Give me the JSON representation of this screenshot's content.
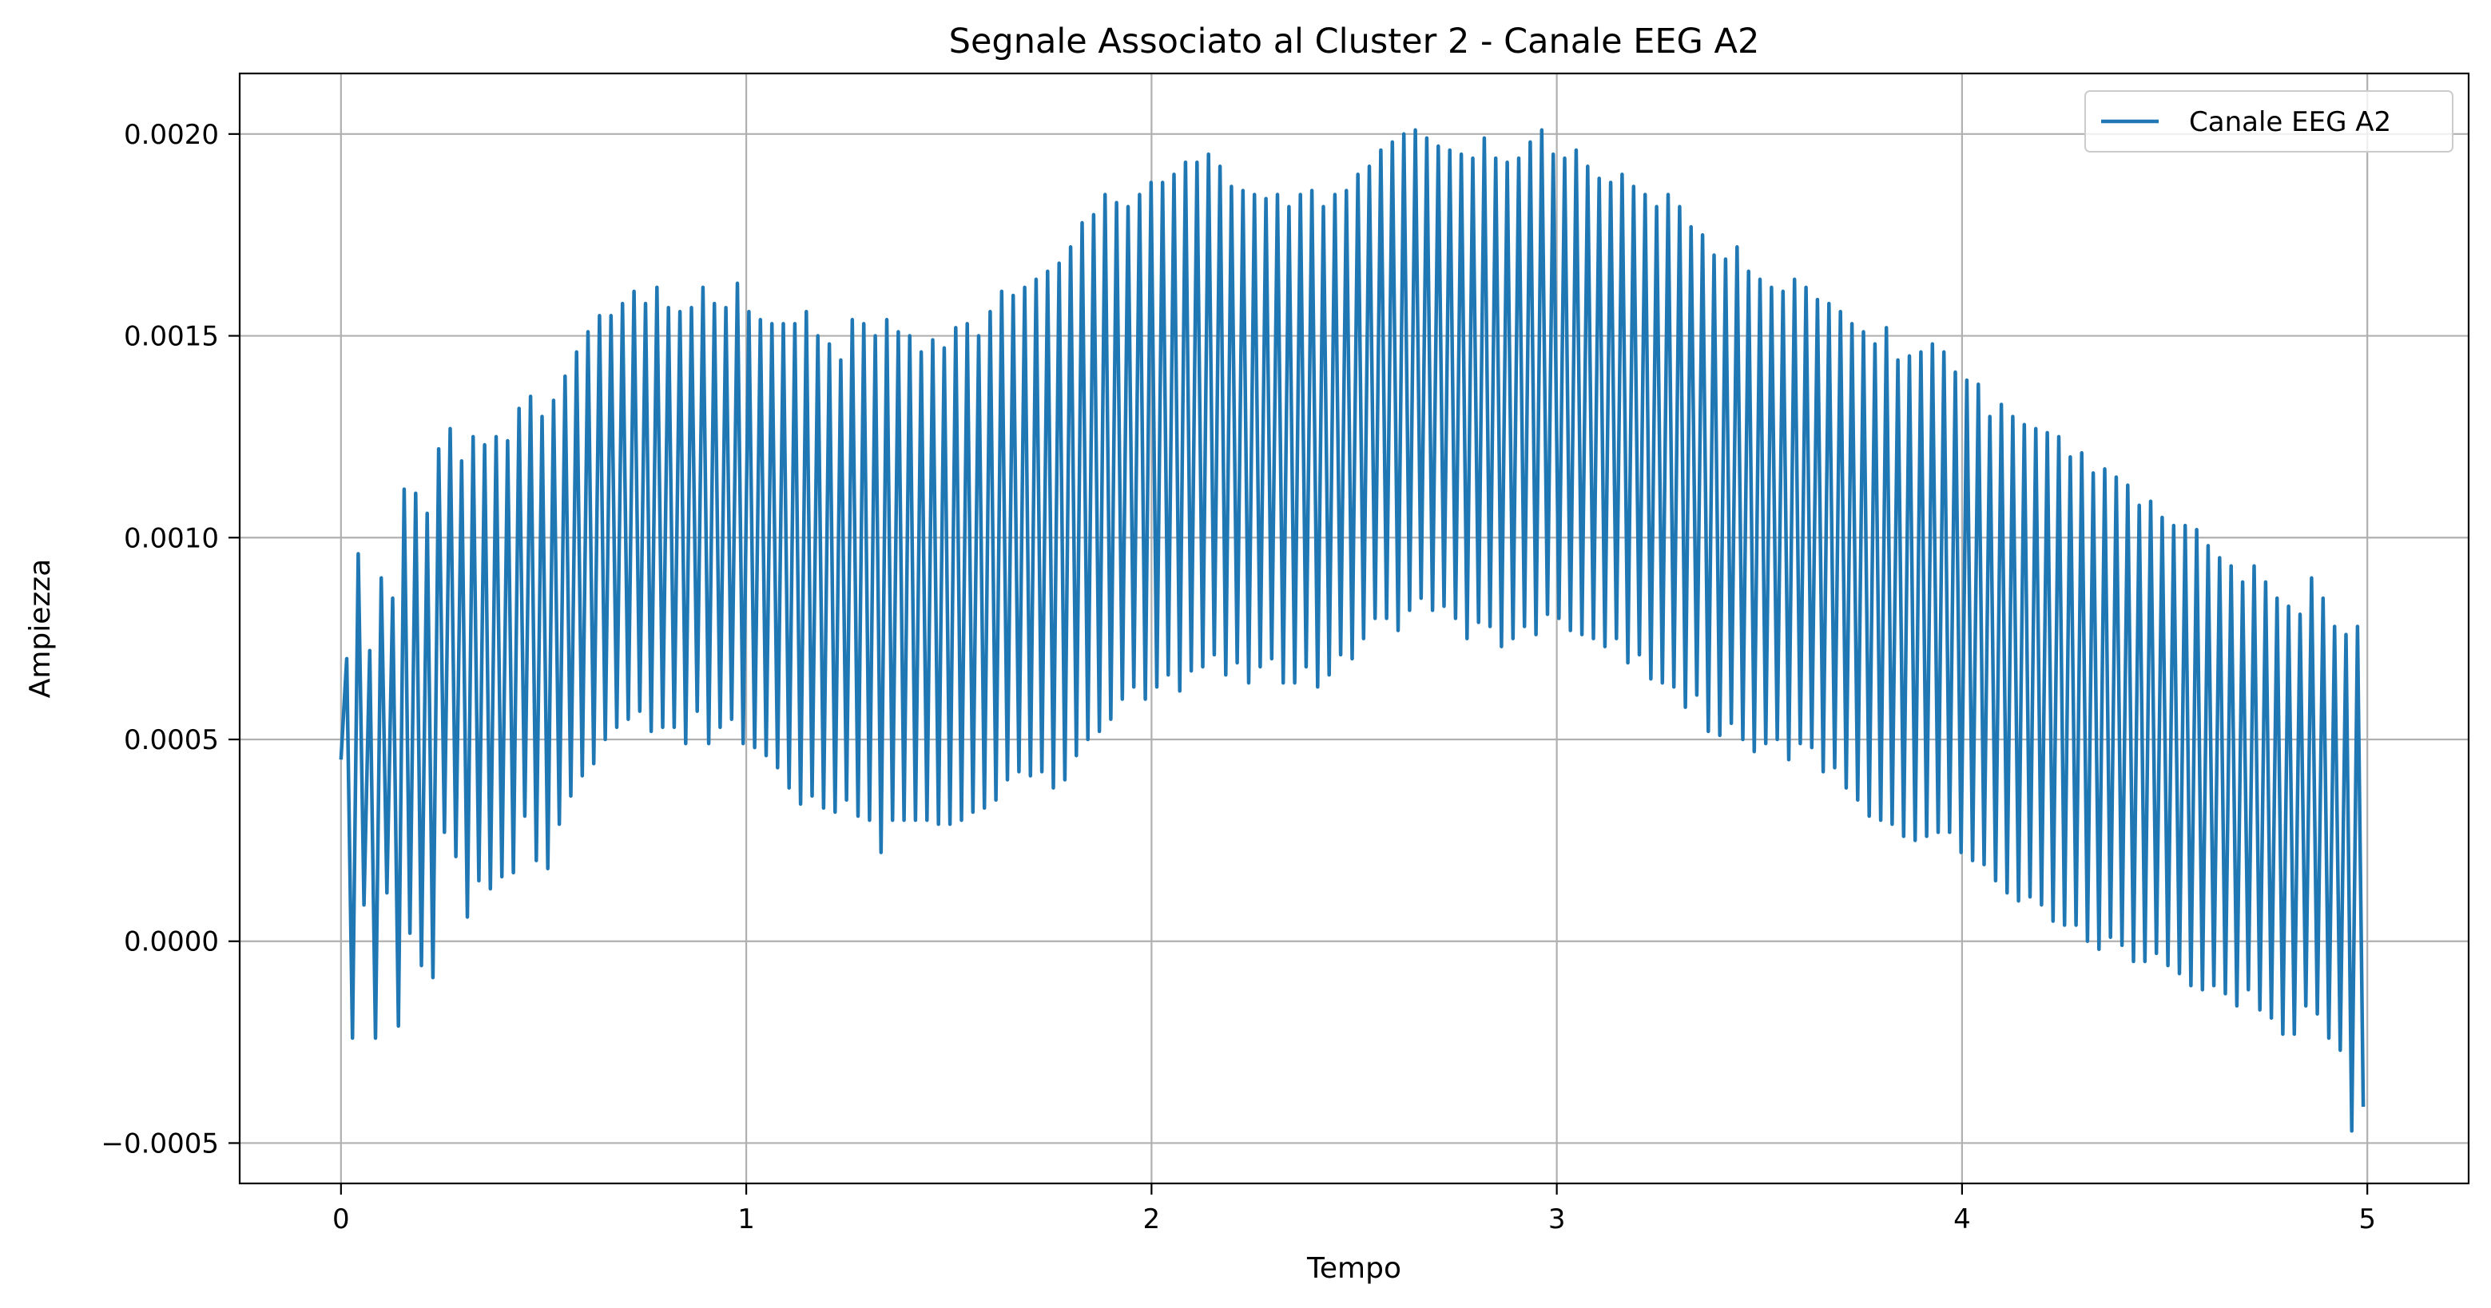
{
  "chart_data": {
    "type": "line",
    "title": "Segnale Associato al Cluster 2 - Canale EEG A2",
    "xlabel": "Tempo",
    "ylabel": "Ampiezza",
    "xlim": [
      -0.25,
      5.25
    ],
    "ylim": [
      -0.0006,
      0.00215
    ],
    "xticks": [
      0,
      1,
      2,
      3,
      4,
      5
    ],
    "xtick_labels": [
      "0",
      "1",
      "2",
      "3",
      "4",
      "5"
    ],
    "yticks": [
      -0.0005,
      0.0,
      0.0005,
      0.001,
      0.0015,
      0.002
    ],
    "ytick_labels": [
      "−0.0005",
      "0.0000",
      "0.0005",
      "0.0010",
      "0.0015",
      "0.0020"
    ],
    "grid": true,
    "legend_position": "top-right",
    "series": [
      {
        "name": "Canale EEG A2",
        "color": "#1f77b4",
        "x_range": [
          0,
          4.99
        ],
        "sample_rate": 100,
        "description_components": {
          "baseline_trend": "half-sine 0.00045 to 0.00125 to 0.00025",
          "oscillation_hz": 50,
          "oscillation_amplitude": 0.0007,
          "modulation_hz": 5,
          "modulation_amplitude": 0.00015
        },
        "values": [
          0.00045,
          0.0007,
          -0.00024,
          0.00096,
          9e-05,
          0.00072,
          -0.00024,
          0.0009,
          0.00012,
          0.00085,
          -0.00021,
          0.00112,
          2e-05,
          0.00111,
          -6e-05,
          0.00106,
          -9e-05,
          0.00122,
          0.00027,
          0.00127,
          0.00021,
          0.00119,
          6e-05,
          0.00125,
          0.00015,
          0.00123,
          0.00013,
          0.00125,
          0.00016,
          0.00124,
          0.00017,
          0.00132,
          0.00031,
          0.00135,
          0.0002,
          0.0013,
          0.00018,
          0.00134,
          0.00029,
          0.0014,
          0.00036,
          0.00146,
          0.00041,
          0.00151,
          0.00044,
          0.00155,
          0.0005,
          0.00155,
          0.00053,
          0.00158,
          0.00055,
          0.00161,
          0.00057,
          0.00158,
          0.00052,
          0.00162,
          0.00053,
          0.00157,
          0.00053,
          0.00156,
          0.00049,
          0.00157,
          0.00057,
          0.00162,
          0.00049,
          0.00158,
          0.00053,
          0.00157,
          0.00055,
          0.00163,
          0.00049,
          0.00156,
          0.00048,
          0.00154,
          0.00046,
          0.00153,
          0.00043,
          0.00153,
          0.00038,
          0.00153,
          0.00034,
          0.00156,
          0.00036,
          0.0015,
          0.00033,
          0.00148,
          0.00032,
          0.00144,
          0.00035,
          0.00154,
          0.00031,
          0.00153,
          0.0003,
          0.0015,
          0.00022,
          0.00154,
          0.0003,
          0.00151,
          0.0003,
          0.0015,
          0.0003,
          0.00146,
          0.0003,
          0.00149,
          0.00029,
          0.00147,
          0.00029,
          0.00152,
          0.0003,
          0.00153,
          0.00032,
          0.0015,
          0.00033,
          0.00156,
          0.00035,
          0.00161,
          0.0004,
          0.0016,
          0.00042,
          0.00162,
          0.00041,
          0.00164,
          0.00042,
          0.00166,
          0.00038,
          0.00168,
          0.0004,
          0.00172,
          0.00046,
          0.00178,
          0.0005,
          0.0018,
          0.00052,
          0.00185,
          0.00055,
          0.00183,
          0.0006,
          0.00182,
          0.00063,
          0.00185,
          0.0006,
          0.00188,
          0.00063,
          0.00188,
          0.00066,
          0.0019,
          0.00062,
          0.00193,
          0.00067,
          0.00193,
          0.00068,
          0.00195,
          0.00071,
          0.00192,
          0.00066,
          0.00187,
          0.00069,
          0.00186,
          0.00064,
          0.00185,
          0.00068,
          0.00184,
          0.0007,
          0.00185,
          0.00064,
          0.00182,
          0.00064,
          0.00185,
          0.00068,
          0.00186,
          0.00063,
          0.00182,
          0.00066,
          0.00185,
          0.00071,
          0.00186,
          0.0007,
          0.0019,
          0.00075,
          0.00192,
          0.0008,
          0.00196,
          0.0008,
          0.00198,
          0.00077,
          0.002,
          0.00082,
          0.00201,
          0.00085,
          0.00199,
          0.00082,
          0.00197,
          0.00083,
          0.00196,
          0.0008,
          0.00195,
          0.00075,
          0.00194,
          0.00079,
          0.00199,
          0.00078,
          0.00194,
          0.00073,
          0.00193,
          0.00075,
          0.00194,
          0.00078,
          0.00198,
          0.00076,
          0.00201,
          0.00081,
          0.00195,
          0.0008,
          0.00194,
          0.00077,
          0.00196,
          0.00076,
          0.00192,
          0.00075,
          0.00189,
          0.00073,
          0.00188,
          0.00075,
          0.0019,
          0.00069,
          0.00187,
          0.00071,
          0.00185,
          0.00065,
          0.00182,
          0.00064,
          0.00185,
          0.00063,
          0.00182,
          0.00058,
          0.00177,
          0.00061,
          0.00175,
          0.00052,
          0.0017,
          0.00051,
          0.00169,
          0.00054,
          0.00172,
          0.0005,
          0.00166,
          0.00047,
          0.00164,
          0.00049,
          0.00162,
          0.0005,
          0.00161,
          0.00045,
          0.00164,
          0.00049,
          0.00162,
          0.00048,
          0.00159,
          0.00042,
          0.00158,
          0.00043,
          0.00156,
          0.00038,
          0.00153,
          0.00035,
          0.00151,
          0.00031,
          0.00148,
          0.0003,
          0.00152,
          0.00029,
          0.00144,
          0.00026,
          0.00145,
          0.00025,
          0.00146,
          0.00026,
          0.00148,
          0.00027,
          0.00146,
          0.00027,
          0.00141,
          0.00022,
          0.00139,
          0.0002,
          0.00138,
          0.00019,
          0.0013,
          0.00015,
          0.00133,
          0.00012,
          0.0013,
          0.0001,
          0.00128,
          0.00011,
          0.00127,
          9e-05,
          0.00126,
          5e-05,
          0.00125,
          4e-05,
          0.0012,
          4e-05,
          0.00121,
          0.0,
          0.00116,
          -2e-05,
          0.00117,
          1e-05,
          0.00115,
          -1e-05,
          0.00113,
          -5e-05,
          0.00108,
          -5e-05,
          0.00109,
          -3e-05,
          0.00105,
          -6e-05,
          0.00103,
          -8e-05,
          0.00103,
          -0.00011,
          0.00102,
          -0.00012,
          0.00098,
          -0.00011,
          0.00095,
          -0.00013,
          0.00093,
          -0.00016,
          0.00089,
          -0.00012,
          0.00093,
          -0.00017,
          0.00089,
          -0.00019,
          0.00085,
          -0.00023,
          0.00083,
          -0.00023,
          0.00081,
          -0.00016,
          0.0009,
          -0.00018,
          0.00085,
          -0.00024,
          0.00078,
          -0.00027,
          0.00076,
          -0.00047,
          0.00078,
          -0.00041
        ]
      }
    ]
  }
}
